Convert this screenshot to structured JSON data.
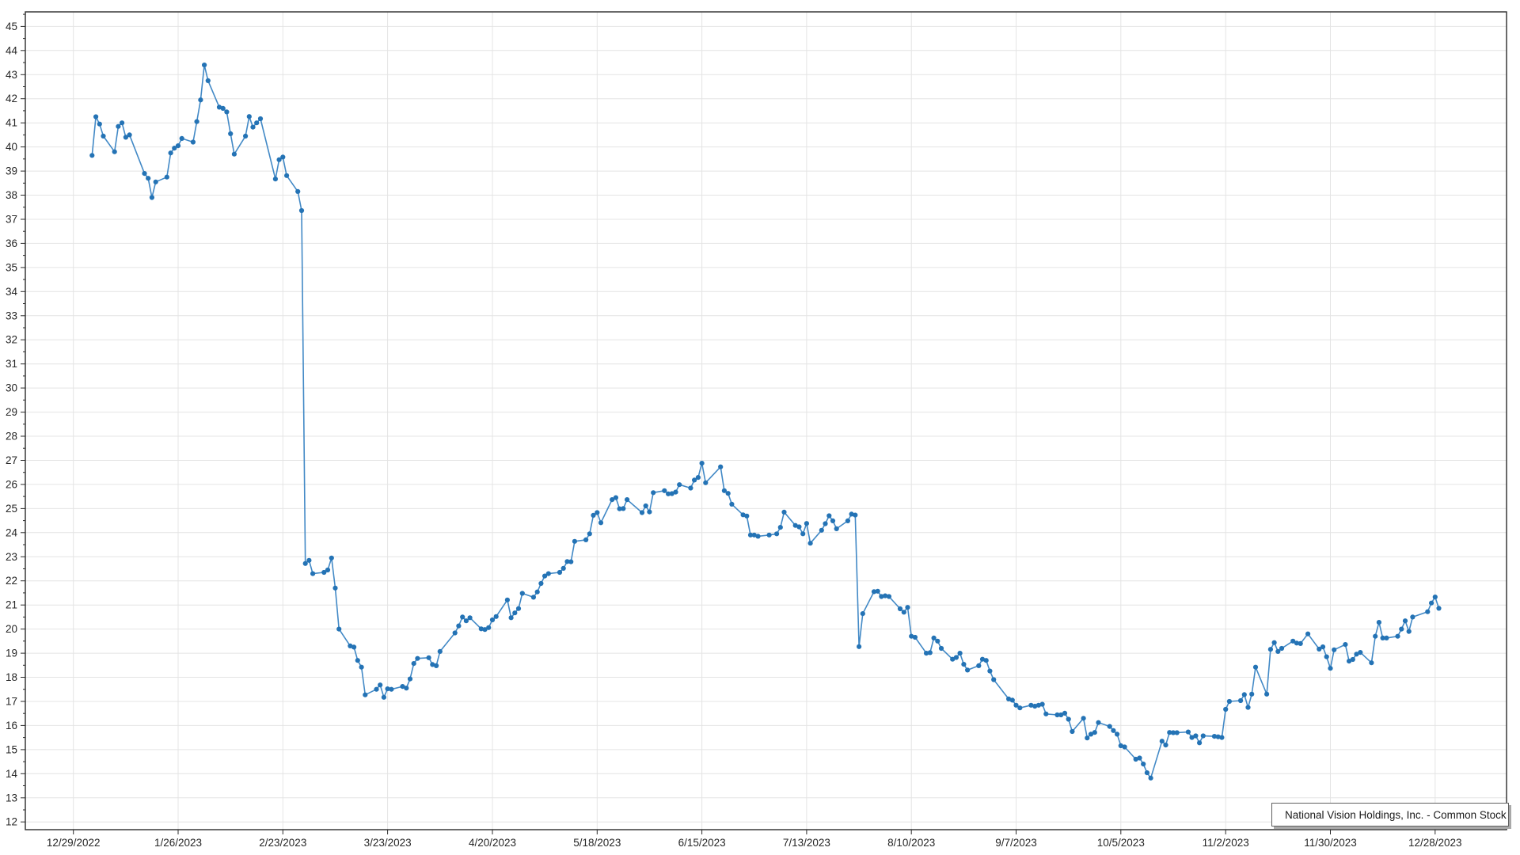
{
  "chart_data": {
    "type": "line",
    "title": "",
    "xlabel": "",
    "ylabel": "",
    "grid": true,
    "legend_position": "bottom-right",
    "colors": {
      "line_color": "#4289c6",
      "marker_color": "#2473b5",
      "grid_color": "#e4e4e4",
      "axis_color": "#2b2b2b",
      "label_color": "#262626",
      "legend_border": "#5f5f5f",
      "background": "#ffffff"
    },
    "y_axis": {
      "min": 12,
      "max": 45,
      "tick_step": 1,
      "minor_tick_step": 0.5,
      "tick_labels": [
        "12",
        "13",
        "14",
        "15",
        "16",
        "17",
        "18",
        "19",
        "20",
        "21",
        "22",
        "23",
        "24",
        "25",
        "26",
        "27",
        "28",
        "29",
        "30",
        "31",
        "32",
        "33",
        "34",
        "35",
        "36",
        "37",
        "38",
        "39",
        "40",
        "41",
        "42",
        "43",
        "44",
        "45"
      ]
    },
    "x_axis": {
      "type": "date",
      "epoch": "12/29/2022",
      "tick_interval_days": 28,
      "tick_labels": [
        "12/29/2022",
        "1/26/2023",
        "2/23/2023",
        "3/23/2023",
        "4/20/2023",
        "5/18/2023",
        "6/15/2023",
        "7/13/2023",
        "8/10/2023",
        "9/7/2023",
        "10/5/2023",
        "11/2/2023",
        "11/30/2023",
        "12/28/2023"
      ]
    },
    "series": [
      {
        "name": "National Vision Holdings, Inc. - Common Stock",
        "points": [
          [
            "1/3/2023",
            39.65
          ],
          [
            "1/4/2023",
            41.25
          ],
          [
            "1/5/2023",
            40.95
          ],
          [
            "1/6/2023",
            40.45
          ],
          [
            "1/9/2023",
            39.8
          ],
          [
            "1/10/2023",
            40.85
          ],
          [
            "1/11/2023",
            41.0
          ],
          [
            "1/12/2023",
            40.4
          ],
          [
            "1/13/2023",
            40.5
          ],
          [
            "1/17/2023",
            38.9
          ],
          [
            "1/18/2023",
            38.7
          ],
          [
            "1/19/2023",
            37.9
          ],
          [
            "1/20/2023",
            38.55
          ],
          [
            "1/23/2023",
            38.75
          ],
          [
            "1/24/2023",
            39.75
          ],
          [
            "1/25/2023",
            39.95
          ],
          [
            "1/26/2023",
            40.05
          ],
          [
            "1/27/2023",
            40.35
          ],
          [
            "1/30/2023",
            40.2
          ],
          [
            "1/31/2023",
            41.05
          ],
          [
            "2/1/2023",
            41.95
          ],
          [
            "2/2/2023",
            43.4
          ],
          [
            "2/3/2023",
            42.75
          ],
          [
            "2/6/2023",
            41.65
          ],
          [
            "2/7/2023",
            41.6
          ],
          [
            "2/8/2023",
            41.45
          ],
          [
            "2/9/2023",
            40.55
          ],
          [
            "2/10/2023",
            39.7
          ],
          [
            "2/13/2023",
            40.45
          ],
          [
            "2/14/2023",
            41.26
          ],
          [
            "2/15/2023",
            40.82
          ],
          [
            "2/16/2023",
            41.0
          ],
          [
            "2/17/2023",
            41.17
          ],
          [
            "2/21/2023",
            38.67
          ],
          [
            "2/22/2023",
            39.47
          ],
          [
            "2/23/2023",
            39.58
          ],
          [
            "2/24/2023",
            38.81
          ],
          [
            "2/27/2023",
            38.15
          ],
          [
            "2/28/2023",
            37.36
          ],
          [
            "3/1/2023",
            22.72
          ],
          [
            "3/2/2023",
            22.85
          ],
          [
            "3/3/2023",
            22.3
          ],
          [
            "3/6/2023",
            22.35
          ],
          [
            "3/7/2023",
            22.45
          ],
          [
            "3/8/2023",
            22.95
          ],
          [
            "3/9/2023",
            21.7
          ],
          [
            "3/10/2023",
            20.0
          ],
          [
            "3/13/2023",
            19.3
          ],
          [
            "3/14/2023",
            19.25
          ],
          [
            "3/15/2023",
            18.7
          ],
          [
            "3/16/2023",
            18.42
          ],
          [
            "3/17/2023",
            17.27
          ],
          [
            "3/20/2023",
            17.5
          ],
          [
            "3/21/2023",
            17.68
          ],
          [
            "3/22/2023",
            17.17
          ],
          [
            "3/23/2023",
            17.52
          ],
          [
            "3/24/2023",
            17.5
          ],
          [
            "3/27/2023",
            17.62
          ],
          [
            "3/28/2023",
            17.55
          ],
          [
            "3/29/2023",
            17.93
          ],
          [
            "3/30/2023",
            18.57
          ],
          [
            "3/31/2023",
            18.78
          ],
          [
            "4/3/2023",
            18.81
          ],
          [
            "4/4/2023",
            18.53
          ],
          [
            "4/5/2023",
            18.48
          ],
          [
            "4/6/2023",
            19.07
          ],
          [
            "4/10/2023",
            19.84
          ],
          [
            "4/11/2023",
            20.13
          ],
          [
            "4/12/2023",
            20.5
          ],
          [
            "4/13/2023",
            20.34
          ],
          [
            "4/14/2023",
            20.47
          ],
          [
            "4/17/2023",
            20.01
          ],
          [
            "4/18/2023",
            19.98
          ],
          [
            "4/19/2023",
            20.06
          ],
          [
            "4/20/2023",
            20.38
          ],
          [
            "4/21/2023",
            20.52
          ],
          [
            "4/24/2023",
            21.21
          ],
          [
            "4/25/2023",
            20.47
          ],
          [
            "4/26/2023",
            20.67
          ],
          [
            "4/27/2023",
            20.85
          ],
          [
            "4/28/2023",
            21.48
          ],
          [
            "5/1/2023",
            21.32
          ],
          [
            "5/2/2023",
            21.54
          ],
          [
            "5/3/2023",
            21.89
          ],
          [
            "5/4/2023",
            22.2
          ],
          [
            "5/5/2023",
            22.3
          ],
          [
            "5/8/2023",
            22.35
          ],
          [
            "5/9/2023",
            22.52
          ],
          [
            "5/10/2023",
            22.8
          ],
          [
            "5/11/2023",
            22.79
          ],
          [
            "5/12/2023",
            23.64
          ],
          [
            "5/15/2023",
            23.7
          ],
          [
            "5/16/2023",
            23.95
          ],
          [
            "5/17/2023",
            24.72
          ],
          [
            "5/18/2023",
            24.83
          ],
          [
            "5/19/2023",
            24.41
          ],
          [
            "5/22/2023",
            25.37
          ],
          [
            "5/23/2023",
            25.45
          ],
          [
            "5/24/2023",
            24.99
          ],
          [
            "5/25/2023",
            25.0
          ],
          [
            "5/26/2023",
            25.37
          ],
          [
            "5/30/2023",
            24.83
          ],
          [
            "5/31/2023",
            25.11
          ],
          [
            "6/1/2023",
            24.86
          ],
          [
            "6/2/2023",
            25.66
          ],
          [
            "6/5/2023",
            25.74
          ],
          [
            "6/6/2023",
            25.61
          ],
          [
            "6/7/2023",
            25.62
          ],
          [
            "6/8/2023",
            25.68
          ],
          [
            "6/9/2023",
            25.99
          ],
          [
            "6/12/2023",
            25.85
          ],
          [
            "6/13/2023",
            26.18
          ],
          [
            "6/14/2023",
            26.29
          ],
          [
            "6/15/2023",
            26.88
          ],
          [
            "6/16/2023",
            26.07
          ],
          [
            "6/20/2023",
            26.73
          ],
          [
            "6/21/2023",
            25.74
          ],
          [
            "6/22/2023",
            25.63
          ],
          [
            "6/23/2023",
            25.18
          ],
          [
            "6/26/2023",
            24.74
          ],
          [
            "6/27/2023",
            24.69
          ],
          [
            "6/28/2023",
            23.9
          ],
          [
            "6/29/2023",
            23.9
          ],
          [
            "6/30/2023",
            23.85
          ],
          [
            "7/3/2023",
            23.9
          ],
          [
            "7/5/2023",
            23.95
          ],
          [
            "7/6/2023",
            24.22
          ],
          [
            "7/7/2023",
            24.85
          ],
          [
            "7/10/2023",
            24.3
          ],
          [
            "7/11/2023",
            24.24
          ],
          [
            "7/12/2023",
            23.95
          ],
          [
            "7/13/2023",
            24.38
          ],
          [
            "7/14/2023",
            23.56
          ],
          [
            "7/17/2023",
            24.1
          ],
          [
            "7/18/2023",
            24.37
          ],
          [
            "7/19/2023",
            24.7
          ],
          [
            "7/20/2023",
            24.49
          ],
          [
            "7/21/2023",
            24.16
          ],
          [
            "7/24/2023",
            24.49
          ],
          [
            "7/25/2023",
            24.77
          ],
          [
            "7/26/2023",
            24.73
          ],
          [
            "7/27/2023",
            19.27
          ],
          [
            "7/28/2023",
            20.64
          ],
          [
            "7/31/2023",
            21.55
          ],
          [
            "8/1/2023",
            21.57
          ],
          [
            "8/2/2023",
            21.35
          ],
          [
            "8/3/2023",
            21.38
          ],
          [
            "8/4/2023",
            21.35
          ],
          [
            "8/7/2023",
            20.84
          ],
          [
            "8/8/2023",
            20.7
          ],
          [
            "8/9/2023",
            20.9
          ],
          [
            "8/10/2023",
            19.7
          ],
          [
            "8/11/2023",
            19.66
          ],
          [
            "8/14/2023",
            19.0
          ],
          [
            "8/15/2023",
            19.02
          ],
          [
            "8/16/2023",
            19.63
          ],
          [
            "8/17/2023",
            19.5
          ],
          [
            "8/18/2023",
            19.2
          ],
          [
            "8/21/2023",
            18.75
          ],
          [
            "8/22/2023",
            18.82
          ],
          [
            "8/23/2023",
            19.0
          ],
          [
            "8/24/2023",
            18.54
          ],
          [
            "8/25/2023",
            18.3
          ],
          [
            "8/28/2023",
            18.48
          ],
          [
            "8/29/2023",
            18.75
          ],
          [
            "8/30/2023",
            18.7
          ],
          [
            "8/31/2023",
            18.26
          ],
          [
            "9/1/2023",
            17.9
          ],
          [
            "9/5/2023",
            17.1
          ],
          [
            "9/6/2023",
            17.05
          ],
          [
            "9/7/2023",
            16.84
          ],
          [
            "9/8/2023",
            16.73
          ],
          [
            "9/11/2023",
            16.84
          ],
          [
            "9/12/2023",
            16.8
          ],
          [
            "9/13/2023",
            16.84
          ],
          [
            "9/14/2023",
            16.88
          ],
          [
            "9/15/2023",
            16.48
          ],
          [
            "9/18/2023",
            16.44
          ],
          [
            "9/19/2023",
            16.44
          ],
          [
            "9/20/2023",
            16.51
          ],
          [
            "9/21/2023",
            16.26
          ],
          [
            "9/22/2023",
            15.75
          ],
          [
            "9/25/2023",
            16.3
          ],
          [
            "9/26/2023",
            15.48
          ],
          [
            "9/27/2023",
            15.64
          ],
          [
            "9/28/2023",
            15.71
          ],
          [
            "9/29/2023",
            16.12
          ],
          [
            "10/2/2023",
            15.96
          ],
          [
            "10/3/2023",
            15.79
          ],
          [
            "10/4/2023",
            15.64
          ],
          [
            "10/5/2023",
            15.16
          ],
          [
            "10/6/2023",
            15.11
          ],
          [
            "10/9/2023",
            14.6
          ],
          [
            "10/10/2023",
            14.65
          ],
          [
            "10/11/2023",
            14.4
          ],
          [
            "10/12/2023",
            14.04
          ],
          [
            "10/13/2023",
            13.82
          ],
          [
            "10/16/2023",
            15.35
          ],
          [
            "10/17/2023",
            15.19
          ],
          [
            "10/18/2023",
            15.71
          ],
          [
            "10/19/2023",
            15.7
          ],
          [
            "10/20/2023",
            15.7
          ],
          [
            "10/23/2023",
            15.73
          ],
          [
            "10/24/2023",
            15.5
          ],
          [
            "10/25/2023",
            15.57
          ],
          [
            "10/26/2023",
            15.28
          ],
          [
            "10/27/2023",
            15.57
          ],
          [
            "10/30/2023",
            15.55
          ],
          [
            "10/31/2023",
            15.53
          ],
          [
            "11/1/2023",
            15.5
          ],
          [
            "11/2/2023",
            16.67
          ],
          [
            "11/3/2023",
            17.0
          ],
          [
            "11/6/2023",
            17.03
          ],
          [
            "11/7/2023",
            17.28
          ],
          [
            "11/8/2023",
            16.75
          ],
          [
            "11/9/2023",
            17.3
          ],
          [
            "11/10/2023",
            18.42
          ],
          [
            "11/13/2023",
            17.3
          ],
          [
            "11/14/2023",
            19.16
          ],
          [
            "11/15/2023",
            19.44
          ],
          [
            "11/16/2023",
            19.07
          ],
          [
            "11/17/2023",
            19.2
          ],
          [
            "11/20/2023",
            19.5
          ],
          [
            "11/21/2023",
            19.42
          ],
          [
            "11/22/2023",
            19.4
          ],
          [
            "11/24/2023",
            19.8
          ],
          [
            "11/27/2023",
            19.17
          ],
          [
            "11/28/2023",
            19.26
          ],
          [
            "11/29/2023",
            18.85
          ],
          [
            "11/30/2023",
            18.37
          ],
          [
            "12/1/2023",
            19.14
          ],
          [
            "12/4/2023",
            19.36
          ],
          [
            "12/5/2023",
            18.67
          ],
          [
            "12/6/2023",
            18.74
          ],
          [
            "12/7/2023",
            18.96
          ],
          [
            "12/8/2023",
            19.03
          ],
          [
            "12/11/2023",
            18.6
          ],
          [
            "12/12/2023",
            19.7
          ],
          [
            "12/13/2023",
            20.28
          ],
          [
            "12/14/2023",
            19.63
          ],
          [
            "12/15/2023",
            19.63
          ],
          [
            "12/18/2023",
            19.7
          ],
          [
            "12/19/2023",
            20.0
          ],
          [
            "12/20/2023",
            20.34
          ],
          [
            "12/21/2023",
            19.9
          ],
          [
            "12/22/2023",
            20.5
          ],
          [
            "12/26/2023",
            20.72
          ],
          [
            "12/27/2023",
            21.08
          ],
          [
            "12/28/2023",
            21.33
          ],
          [
            "12/29/2023",
            20.86
          ]
        ]
      }
    ]
  },
  "legend": {
    "series_label": "National Vision Holdings, Inc. - Common Stock"
  }
}
